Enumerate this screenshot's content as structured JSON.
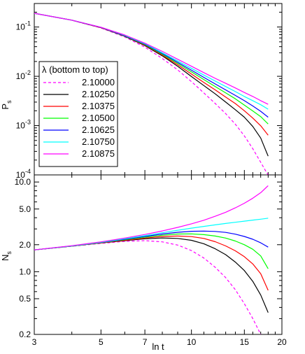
{
  "chart_data": [
    {
      "type": "line",
      "panel": "top",
      "xlabel": "",
      "ylabel": "P",
      "ylabel_sub": "s",
      "xscale": "log",
      "yscale": "log",
      "xlim": [
        3,
        20
      ],
      "ylim": [
        0.0001,
        0.3
      ],
      "yticks": [
        {
          "value": 0.1,
          "base": "10",
          "exp": "-1"
        },
        {
          "value": 0.01,
          "base": "10",
          "exp": "-2"
        },
        {
          "value": 0.001,
          "base": "10",
          "exp": "-3"
        },
        {
          "value": 0.0001,
          "base": "10",
          "exp": "-4"
        }
      ],
      "legend": {
        "title": "λ (bottom to top)",
        "position": "left"
      },
      "series": [
        {
          "name": "2.10000",
          "color": "#ff00ff",
          "dashed": true,
          "x": [
            3,
            4,
            5,
            6,
            7,
            8,
            9,
            10,
            11,
            12,
            13,
            14,
            15,
            16,
            17,
            17.6,
            18
          ],
          "y": [
            0.19,
            0.137,
            0.096,
            0.063,
            0.039,
            0.023,
            0.0135,
            0.0078,
            0.0046,
            0.0028,
            0.00175,
            0.00107,
            0.00062,
            0.00034,
            0.00018,
            0.000125,
            0.0001
          ]
        },
        {
          "name": "2.10250",
          "color": "#000000",
          "dashed": false,
          "x": [
            3,
            4,
            5,
            6,
            7,
            8,
            9,
            10,
            11,
            12,
            13,
            14,
            15,
            16,
            17,
            18
          ],
          "y": [
            0.19,
            0.138,
            0.097,
            0.065,
            0.042,
            0.026,
            0.016,
            0.0099,
            0.0065,
            0.0044,
            0.003,
            0.0021,
            0.00148,
            0.00096,
            0.00056,
            0.00024
          ]
        },
        {
          "name": "2.10375",
          "color": "#ff0000",
          "dashed": false,
          "x": [
            3,
            4,
            5,
            6,
            7,
            8,
            9,
            10,
            11,
            12,
            13,
            14,
            15,
            16,
            17,
            18
          ],
          "y": [
            0.19,
            0.138,
            0.097,
            0.066,
            0.043,
            0.027,
            0.0172,
            0.0111,
            0.0075,
            0.0053,
            0.0038,
            0.0028,
            0.002,
            0.00142,
            0.00099,
            0.00064
          ]
        },
        {
          "name": "2.10500",
          "color": "#00ff00",
          "dashed": false,
          "x": [
            3,
            4,
            5,
            6,
            7,
            8,
            9,
            10,
            11,
            12,
            13,
            14,
            15,
            16,
            17,
            18
          ],
          "y": [
            0.19,
            0.138,
            0.098,
            0.066,
            0.044,
            0.028,
            0.0183,
            0.0123,
            0.0086,
            0.0062,
            0.0046,
            0.0035,
            0.0026,
            0.00198,
            0.00152,
            0.00108
          ]
        },
        {
          "name": "2.10625",
          "color": "#0000ff",
          "dashed": false,
          "x": [
            3,
            4,
            5,
            6,
            7,
            8,
            9,
            10,
            11,
            12,
            13,
            14,
            15,
            16,
            17,
            18
          ],
          "y": [
            0.19,
            0.138,
            0.098,
            0.067,
            0.045,
            0.029,
            0.0193,
            0.0133,
            0.0095,
            0.007,
            0.0053,
            0.0041,
            0.0032,
            0.0025,
            0.00195,
            0.00148
          ]
        },
        {
          "name": "2.10750",
          "color": "#00ffff",
          "dashed": false,
          "x": [
            3,
            4,
            5,
            6,
            7,
            8,
            9,
            10,
            11,
            12,
            13,
            14,
            15,
            16,
            17,
            18
          ],
          "y": [
            0.19,
            0.138,
            0.099,
            0.068,
            0.046,
            0.03,
            0.0205,
            0.0145,
            0.0106,
            0.008,
            0.0062,
            0.0049,
            0.0039,
            0.0032,
            0.00265,
            0.00215
          ]
        },
        {
          "name": "2.10875",
          "color": "#ff00ff",
          "dashed": false,
          "x": [
            3,
            4,
            5,
            6,
            7,
            8,
            9,
            10,
            11,
            12,
            13,
            14,
            15,
            16,
            17,
            18
          ],
          "y": [
            0.19,
            0.138,
            0.099,
            0.069,
            0.047,
            0.032,
            0.0222,
            0.016,
            0.0119,
            0.0091,
            0.0072,
            0.0058,
            0.0047,
            0.0039,
            0.0032,
            0.0027
          ]
        }
      ]
    },
    {
      "type": "line",
      "panel": "bottom",
      "xlabel": "ln t",
      "ylabel": "N",
      "ylabel_sub": "s",
      "xscale": "log",
      "yscale": "log",
      "xlim": [
        3,
        20
      ],
      "ylim": [
        0.2,
        12
      ],
      "xticks": [
        "3",
        "5",
        "7",
        "10",
        "15",
        "20"
      ],
      "yticks": [
        "10.0",
        "5.0",
        "2.0",
        "1.0",
        "0.5",
        "0.2"
      ],
      "series": [
        {
          "name": "2.10000",
          "color": "#ff00ff",
          "dashed": true,
          "x": [
            3,
            4,
            5,
            6,
            7,
            8,
            9,
            10,
            11,
            12,
            13,
            14,
            15,
            16,
            17
          ],
          "y": [
            1.75,
            1.92,
            2.07,
            2.18,
            2.22,
            2.15,
            1.98,
            1.72,
            1.42,
            1.12,
            0.86,
            0.63,
            0.44,
            0.3,
            0.2
          ]
        },
        {
          "name": "2.10250",
          "color": "#000000",
          "dashed": false,
          "x": [
            3,
            4,
            5,
            6,
            7,
            8,
            9,
            10,
            11,
            12,
            13,
            14,
            15,
            16,
            17,
            18
          ],
          "y": [
            1.75,
            1.93,
            2.09,
            2.22,
            2.33,
            2.38,
            2.35,
            2.24,
            2.05,
            1.8,
            1.55,
            1.28,
            1.03,
            0.78,
            0.55,
            0.35
          ]
        },
        {
          "name": "2.10375",
          "color": "#ff0000",
          "dashed": false,
          "x": [
            3,
            4,
            5,
            6,
            7,
            8,
            9,
            10,
            11,
            12,
            13,
            14,
            15,
            16,
            17,
            18
          ],
          "y": [
            1.75,
            1.93,
            2.1,
            2.24,
            2.37,
            2.47,
            2.5,
            2.46,
            2.35,
            2.16,
            1.94,
            1.71,
            1.47,
            1.22,
            0.95,
            0.62
          ]
        },
        {
          "name": "2.10500",
          "color": "#00ff00",
          "dashed": false,
          "x": [
            3,
            4,
            5,
            6,
            7,
            8,
            9,
            10,
            11,
            12,
            13,
            14,
            15,
            16,
            17,
            18
          ],
          "y": [
            1.75,
            1.93,
            2.11,
            2.27,
            2.42,
            2.55,
            2.63,
            2.64,
            2.59,
            2.5,
            2.37,
            2.2,
            2.0,
            1.78,
            1.5,
            1.08
          ]
        },
        {
          "name": "2.10625",
          "color": "#0000ff",
          "dashed": false,
          "x": [
            3,
            4,
            5,
            6,
            7,
            8,
            9,
            10,
            11,
            12,
            13,
            14,
            15,
            16,
            17,
            18
          ],
          "y": [
            1.75,
            1.94,
            2.12,
            2.3,
            2.47,
            2.63,
            2.75,
            2.82,
            2.84,
            2.81,
            2.74,
            2.62,
            2.47,
            2.3,
            2.1,
            1.88
          ]
        },
        {
          "name": "2.10750",
          "color": "#00ffff",
          "dashed": false,
          "x": [
            3,
            4,
            5,
            6,
            7,
            8,
            9,
            10,
            11,
            12,
            13,
            14,
            15,
            16,
            17,
            18
          ],
          "y": [
            1.75,
            1.94,
            2.13,
            2.33,
            2.52,
            2.72,
            2.9,
            3.06,
            3.2,
            3.33,
            3.45,
            3.56,
            3.66,
            3.76,
            3.85,
            3.95
          ]
        },
        {
          "name": "2.10875",
          "color": "#ff00ff",
          "dashed": false,
          "x": [
            3,
            4,
            5,
            6,
            7,
            8,
            9,
            10,
            11,
            12,
            13,
            14,
            15,
            16,
            17,
            18
          ],
          "y": [
            1.75,
            1.95,
            2.15,
            2.37,
            2.6,
            2.85,
            3.12,
            3.42,
            3.75,
            4.15,
            4.6,
            5.15,
            5.8,
            6.6,
            7.6,
            9.1
          ]
        }
      ]
    }
  ]
}
